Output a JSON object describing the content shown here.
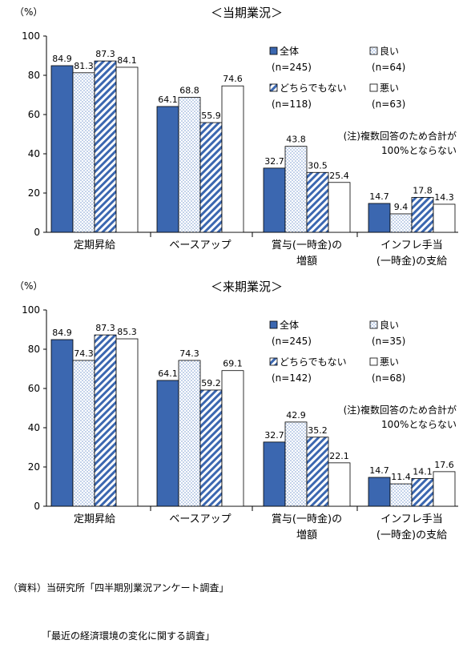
{
  "chart_data": [
    {
      "type": "bar",
      "title": "＜当期業況＞",
      "ylabel": "（%）",
      "ylim": [
        0,
        100
      ],
      "yticks": [
        "0",
        "20",
        "40",
        "60",
        "80",
        "100"
      ],
      "grid": false,
      "legend_position": "top-right",
      "categories": [
        [
          "定期昇給"
        ],
        [
          "ベースアップ"
        ],
        [
          "賞与(一時金)の",
          "増額"
        ],
        [
          "インフレ手当",
          "(一時金)の支給"
        ]
      ],
      "series": [
        {
          "name": "全体",
          "n": "(n=245)",
          "pattern": "solid",
          "values": [
            84.9,
            64.1,
            32.7,
            14.7
          ]
        },
        {
          "name": "良い",
          "n": "(n=64)",
          "pattern": "dots",
          "values": [
            81.3,
            68.8,
            43.8,
            9.4
          ]
        },
        {
          "name": "どちらでもない",
          "n": "(n=118)",
          "pattern": "stripes",
          "values": [
            87.3,
            55.9,
            30.5,
            17.8
          ]
        },
        {
          "name": "悪い",
          "n": "(n=63)",
          "pattern": "white",
          "values": [
            84.1,
            74.6,
            25.4,
            14.3
          ]
        }
      ],
      "note": [
        "(注)複数回答のため合計が",
        "100%とならない"
      ]
    },
    {
      "type": "bar",
      "title": "＜来期業況＞",
      "ylabel": "（%）",
      "ylim": [
        0,
        100
      ],
      "yticks": [
        "0",
        "20",
        "40",
        "60",
        "80",
        "100"
      ],
      "grid": false,
      "legend_position": "top-right",
      "categories": [
        [
          "定期昇給"
        ],
        [
          "ベースアップ"
        ],
        [
          "賞与(一時金)の",
          "増額"
        ],
        [
          "インフレ手当",
          "(一時金)の支給"
        ]
      ],
      "series": [
        {
          "name": "全体",
          "n": "(n=245)",
          "pattern": "solid",
          "values": [
            84.9,
            64.1,
            32.7,
            14.7
          ]
        },
        {
          "name": "良い",
          "n": "(n=35)",
          "pattern": "dots",
          "values": [
            74.3,
            74.3,
            42.9,
            11.4
          ]
        },
        {
          "name": "どちらでもない",
          "n": "(n=142)",
          "pattern": "stripes",
          "values": [
            87.3,
            59.2,
            35.2,
            14.1
          ]
        },
        {
          "name": "悪い",
          "n": "(n=68)",
          "pattern": "white",
          "values": [
            85.3,
            69.1,
            22.1,
            17.6
          ]
        }
      ],
      "note": [
        "(注)複数回答のため合計が",
        "100%とならない"
      ]
    }
  ],
  "source": [
    "（資料）当研究所「四半期別業況アンケート調査」",
    "　　　　「最近の経済環境の変化に関する調査」"
  ],
  "colors": {
    "solid": "#3b67b0",
    "stripe": "#3b67b0",
    "dot": "#7d9ed2",
    "axis": "#000000"
  }
}
